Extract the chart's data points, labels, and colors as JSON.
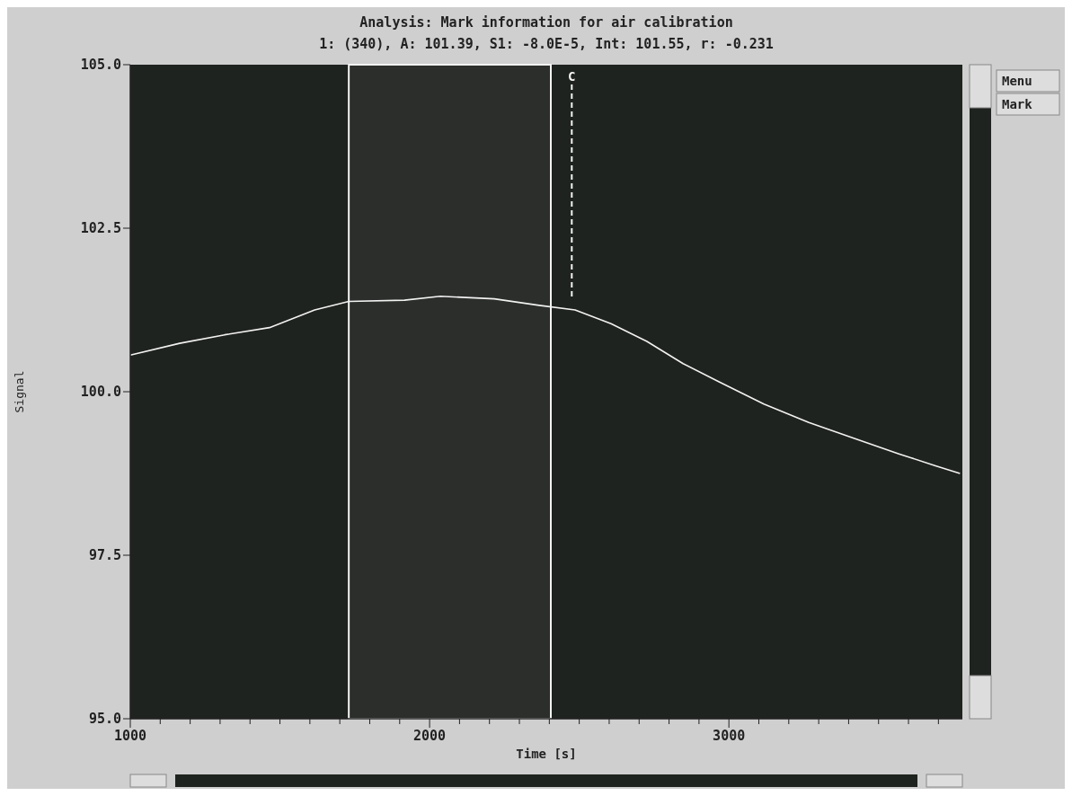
{
  "chart_data": {
    "type": "line",
    "title": "Analysis: Mark information for air calibration",
    "subtitle": "1: (340), A: 101.39, S1: -8.0E-5, Int: 101.55, r: -0.231",
    "xlabel": "Time [s]",
    "ylabel": "Signal",
    "annotations": [
      "Menu",
      "Mark"
    ],
    "x": [
      1000,
      1165,
      1315,
      1465,
      1616,
      1730,
      1916,
      2036,
      2216,
      2366,
      2486,
      2606,
      2726,
      2847,
      2967,
      3117,
      3267,
      3417,
      3568,
      3688,
      3772
    ],
    "series": [
      {
        "color": "#f2f2f2",
        "values": [
          100.56,
          100.74,
          100.87,
          100.98,
          101.25,
          101.38,
          101.4,
          101.46,
          101.42,
          101.32,
          101.25,
          101.04,
          100.77,
          100.43,
          100.15,
          99.81,
          99.53,
          99.29,
          99.05,
          98.87,
          98.75
        ]
      }
    ],
    "xlim": [
      1000,
      3780
    ],
    "ylim": [
      95,
      105
    ],
    "xticks": [
      1000,
      {
        "value": 1100,
        "label": null
      },
      {
        "value": 1200,
        "label": null
      },
      {
        "value": 1300,
        "label": null
      },
      {
        "value": 1400,
        "label": null
      },
      {
        "value": 1500,
        "label": null
      },
      {
        "value": 1600,
        "label": null
      },
      {
        "value": 1700,
        "label": null
      },
      {
        "value": 1800,
        "label": null
      },
      {
        "value": 1900,
        "label": null
      },
      2000,
      {
        "value": 2100,
        "label": null
      },
      {
        "value": 2200,
        "label": null
      },
      {
        "value": 2300,
        "label": null
      },
      {
        "value": 2400,
        "label": null
      },
      {
        "value": 2500,
        "label": null
      },
      {
        "value": 2600,
        "label": null
      },
      {
        "value": 2700,
        "label": null
      },
      {
        "value": 2800,
        "label": null
      },
      {
        "value": 2900,
        "label": null
      },
      3000,
      {
        "value": 3100,
        "label": null
      },
      {
        "value": 3200,
        "label": null
      },
      {
        "value": 3300,
        "label": null
      },
      {
        "value": 3400,
        "label": null
      },
      {
        "value": 3500,
        "label": null
      },
      {
        "value": 3600,
        "label": null
      },
      {
        "value": 3700,
        "label": null
      }
    ],
    "yticks": [
      {
        "value": 95,
        "label": "95.0"
      },
      {
        "value": 97.5,
        "label": "97.5"
      },
      {
        "value": 100,
        "label": "100.0"
      },
      {
        "value": 102.5,
        "label": "102.5"
      },
      {
        "value": 105,
        "label": "105.0"
      }
    ],
    "bands": [
      {
        "axis": "x",
        "from": 1730,
        "to": 2405,
        "color": "#f2f2f2"
      }
    ],
    "ref_lines": [
      {
        "axis": "x",
        "value": 2475,
        "label": "C",
        "color": "#f2f2f2",
        "line_style": "dashed"
      }
    ],
    "grid": false,
    "marker": "none",
    "line_style": "solid"
  }
}
